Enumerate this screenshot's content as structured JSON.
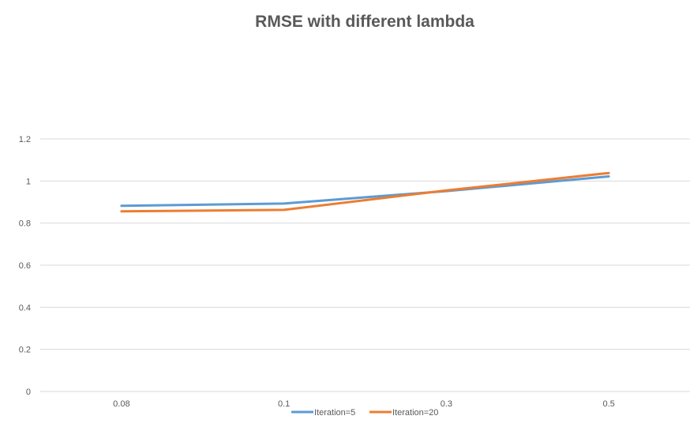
{
  "chart_data": {
    "type": "line",
    "title": "RMSE with different lambda",
    "xlabel": "",
    "ylabel": "",
    "categories": [
      "0.08",
      "0.1",
      "0.3",
      "0.5"
    ],
    "ylim": [
      0,
      1.2
    ],
    "yticks": [
      0,
      0.2,
      0.4,
      0.6,
      0.8,
      1,
      1.2
    ],
    "ytick_labels": [
      "0",
      "0.2",
      "0.4",
      "0.6",
      "0.8",
      "1",
      "1.2"
    ],
    "grid": true,
    "legend_position": "bottom",
    "series": [
      {
        "name": "Iteration=5",
        "color": "#5b9bd5",
        "values": [
          0.882,
          0.893,
          0.952,
          1.022
        ]
      },
      {
        "name": "Iteration=20",
        "color": "#ed7d31",
        "values": [
          0.856,
          0.863,
          0.955,
          1.038
        ]
      }
    ]
  }
}
